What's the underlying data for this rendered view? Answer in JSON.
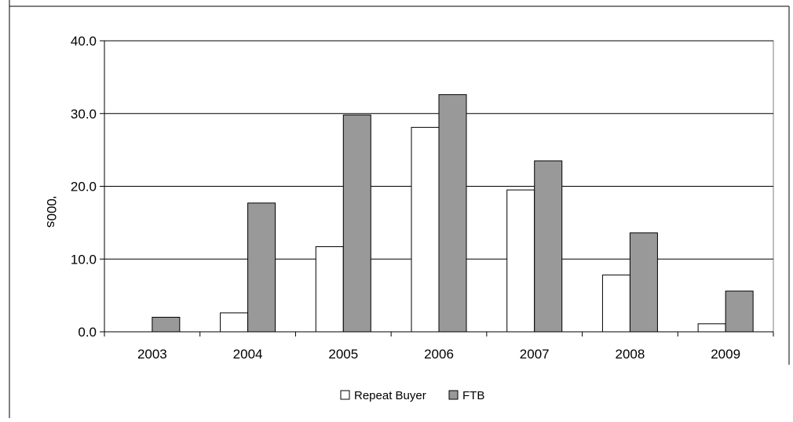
{
  "chart_data": {
    "type": "bar",
    "title": "",
    "xlabel": "",
    "ylabel": "'000s",
    "categories": [
      "2003",
      "2004",
      "2005",
      "2006",
      "2007",
      "2008",
      "2009"
    ],
    "series": [
      {
        "name": "Repeat Buyer",
        "values": [
          0.0,
          2.6,
          11.7,
          28.1,
          19.5,
          7.8,
          1.1
        ],
        "color": "#ffffff"
      },
      {
        "name": "FTB",
        "values": [
          2.0,
          17.7,
          29.8,
          32.6,
          23.5,
          13.6,
          5.6
        ],
        "color": "#999999"
      }
    ],
    "ylim": [
      0,
      40
    ],
    "yticks": [
      "0.0",
      "10.0",
      "20.0",
      "30.0",
      "40.0"
    ],
    "grid": true,
    "legend_position": "bottom"
  }
}
